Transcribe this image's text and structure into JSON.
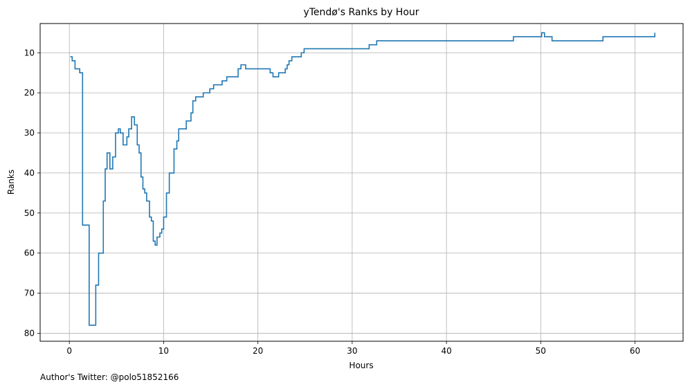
{
  "footnote": "Author's Twitter: @polo51852166",
  "chart_data": {
    "type": "line",
    "step": true,
    "title": "yTendø's Ranks by Hour",
    "xlabel": "Hours",
    "ylabel": "Ranks",
    "xlim": [
      -3.1,
      65.1
    ],
    "ylim": [
      82,
      2.7
    ],
    "y_inverted": true,
    "grid": true,
    "x_ticks": [
      0,
      10,
      20,
      30,
      40,
      50,
      60
    ],
    "y_ticks": [
      10,
      20,
      30,
      40,
      50,
      60,
      70,
      80
    ],
    "color": "#1f77b4",
    "series": [
      {
        "x": [
          0.1,
          0.3,
          0.6,
          1.1,
          1.4,
          2.1,
          2.8,
          3.1,
          3.6,
          3.8,
          4.0,
          4.3,
          4.6,
          4.9,
          5.2,
          5.4,
          5.7,
          6.1,
          6.3,
          6.6,
          6.7,
          6.9,
          7.2,
          7.4,
          7.6,
          7.8,
          8.0,
          8.2,
          8.5,
          8.7,
          8.9,
          9.1,
          9.3,
          9.6,
          9.8,
          10.0,
          10.3,
          10.6,
          11.1,
          11.4,
          11.6,
          11.8,
          12.4,
          12.9,
          13.1,
          13.4,
          13.7,
          14.2,
          14.9,
          15.3,
          15.9,
          16.2,
          16.7,
          17.9,
          18.2,
          18.7,
          19.2,
          21.3,
          21.6,
          22.2,
          22.9,
          23.1,
          23.3,
          23.6,
          24.6,
          24.9,
          25.4,
          31.8,
          32.6,
          46.3,
          47.1,
          50.1,
          50.4,
          51.2,
          56.3,
          56.6,
          62.1
        ],
        "y": [
          11,
          12,
          14,
          15,
          53,
          78,
          68,
          60,
          47,
          39,
          35,
          39,
          36,
          30,
          29,
          30,
          33,
          31,
          29,
          26,
          26,
          28,
          33,
          35,
          41,
          44,
          45,
          47,
          51,
          52,
          57,
          58,
          56,
          55,
          54,
          51,
          45,
          40,
          34,
          32,
          29,
          29,
          27,
          25,
          22,
          21,
          21,
          20,
          19,
          18,
          18,
          17,
          16,
          14,
          13,
          14,
          14,
          15,
          16,
          15,
          14,
          13,
          12,
          11,
          10,
          9,
          9,
          8,
          7,
          7,
          6,
          5,
          6,
          7,
          7,
          6,
          5
        ]
      }
    ]
  }
}
